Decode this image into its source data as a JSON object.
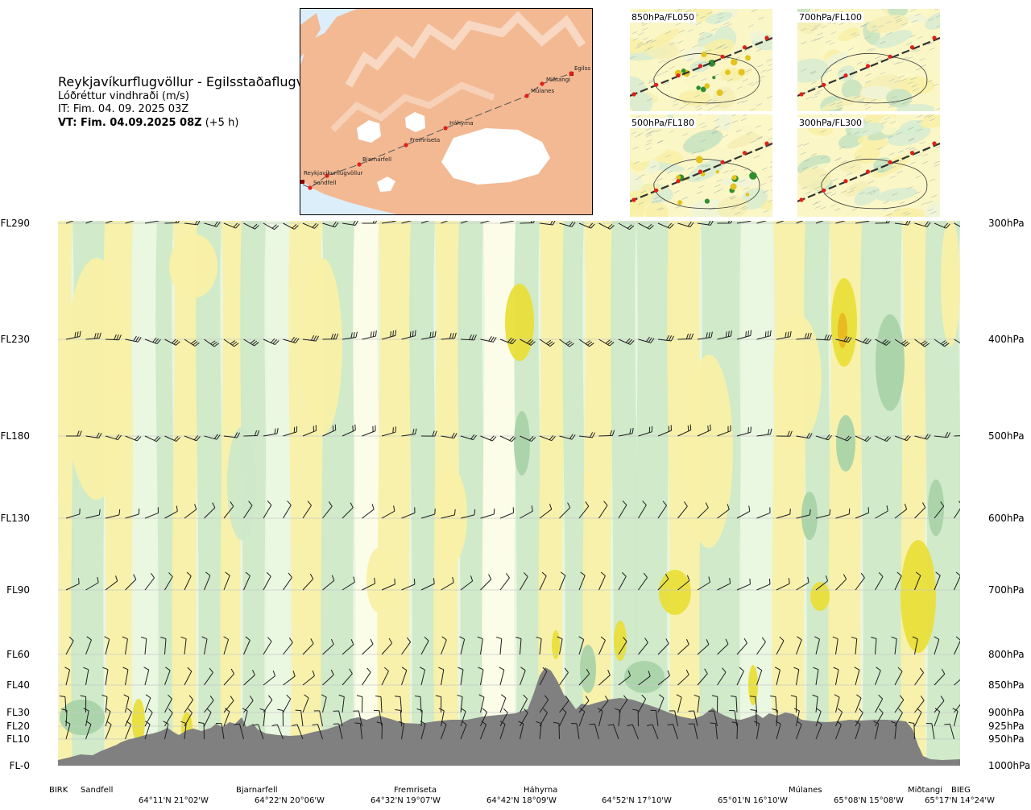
{
  "title": {
    "route": "Reykjavíkurflugvöllur - Egilsstaðaflugvöllur",
    "variable": "Lóðréttur vindhraði (m/s)",
    "issue_time": "IT: Fim. 04. 09. 2025 03Z",
    "valid_time": "VT: Fim. 04.09.2025 08Z",
    "lead": "(+5 h)"
  },
  "route_map": {
    "waypoints": [
      "Reykjavíkurflugvöllur",
      "Sandfell",
      "Bjarnarfell",
      "Fremriseta",
      "Háhyrna",
      "Múlanes",
      "Miðtangi",
      "Egilss"
    ],
    "colors": {
      "sea": "#dbeefa",
      "land": "#f2b993",
      "ice": "#ffffff",
      "track": "#555555",
      "point": "#e0201a"
    }
  },
  "level_maps": [
    {
      "label": "850hPa/FL050"
    },
    {
      "label": "700hPa/FL100"
    },
    {
      "label": "500hPa/FL180"
    },
    {
      "label": "300hPa/FL300"
    }
  ],
  "cross_section": {
    "flight_levels": [
      "FL290",
      "FL230",
      "FL180",
      "FL130",
      "FL90",
      "FL60",
      "FL40",
      "FL30",
      "FL20",
      "FL10",
      "FL-0"
    ],
    "pressure_levels": [
      "300hPa",
      "400hPa",
      "500hPa",
      "600hPa",
      "700hPa",
      "800hPa",
      "850hPa",
      "900hPa",
      "925hPa",
      "950hPa",
      "1000hPa"
    ],
    "colors": {
      "up_strong": "#a9d3a8",
      "up": "#cde8c8",
      "up_weak": "#e9f6e1",
      "neutral": "#fdfde8",
      "down_weak": "#f8f0a6",
      "down": "#e9df3a",
      "terrain": "#808080",
      "barb": "#1e1e1e"
    }
  },
  "waypoints": [
    "BIRK",
    "Sandfell",
    "Bjarnarfell",
    "Fremriseta",
    "Háhyrna",
    "Múlanes",
    "Miðtangi",
    "BIEG"
  ],
  "coordinates": [
    "64°11'N 21°02'W",
    "64°22'N 20°06'W",
    "64°32'N 19°07'W",
    "64°42'N 18°09'W",
    "64°52'N 17°10'W",
    "65°01'N 16°10'W",
    "65°08'N 15°08'W",
    "65°17'N 14°24'W"
  ],
  "chart_data": {
    "type": "heatmap",
    "title": "Lóðréttur vindhraði (m/s)",
    "y_left_ticks": [
      "FL290",
      "FL230",
      "FL180",
      "FL130",
      "FL90",
      "FL60",
      "FL40",
      "FL30",
      "FL20",
      "FL10",
      "FL-0"
    ],
    "y_right_ticks": [
      "300hPa",
      "400hPa",
      "500hPa",
      "600hPa",
      "700hPa",
      "800hPa",
      "850hPa",
      "900hPa",
      "925hPa",
      "950hPa",
      "1000hPa"
    ],
    "x_waypoints": [
      "BIRK",
      "Sandfell",
      "Bjarnarfell",
      "Fremriseta",
      "Háhyrna",
      "Múlanes",
      "Miðtangi",
      "BIEG"
    ],
    "x_coordinates": [
      "64°11'N 21°02'W",
      "64°22'N 20°06'W",
      "64°32'N 19°07'W",
      "64°42'N 18°09'W",
      "64°52'N 17°10'W",
      "65°01'N 16°10'W",
      "65°08'N 15°08'W",
      "65°17'N 14°24'W"
    ],
    "terrain_peak_label": "Háhyrna"
  }
}
